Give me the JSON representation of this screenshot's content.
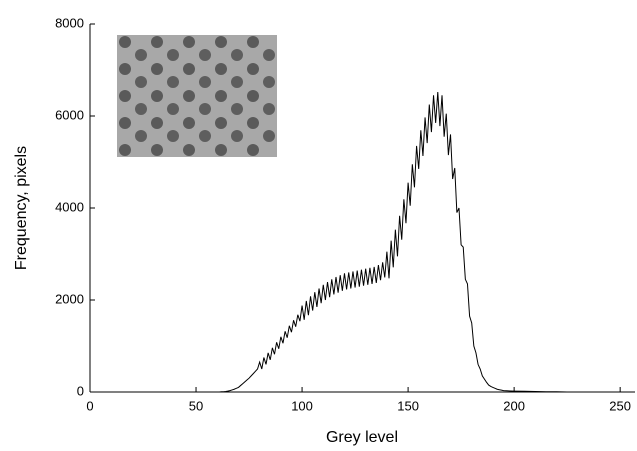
{
  "chart_data": {
    "type": "line",
    "xlabel": "Grey level",
    "ylabel": "Frequency, pixels",
    "color": "#000000",
    "x": [
      60,
      61,
      62,
      63,
      64,
      65,
      66,
      67,
      68,
      69,
      70,
      71,
      72,
      73,
      74,
      75,
      76,
      77,
      78,
      79,
      80,
      81,
      82,
      83,
      84,
      85,
      86,
      87,
      88,
      89,
      90,
      91,
      92,
      93,
      94,
      95,
      96,
      97,
      98,
      99,
      100,
      101,
      102,
      103,
      104,
      105,
      106,
      107,
      108,
      109,
      110,
      111,
      112,
      113,
      114,
      115,
      116,
      117,
      118,
      119,
      120,
      121,
      122,
      123,
      124,
      125,
      126,
      127,
      128,
      129,
      130,
      131,
      132,
      133,
      134,
      135,
      136,
      137,
      138,
      139,
      140,
      141,
      142,
      143,
      144,
      145,
      146,
      147,
      148,
      149,
      150,
      151,
      152,
      153,
      154,
      155,
      156,
      157,
      158,
      159,
      160,
      161,
      162,
      163,
      164,
      165,
      166,
      167,
      168,
      169,
      170,
      171,
      172,
      173,
      174,
      175,
      176,
      177,
      178,
      179,
      180,
      181,
      182,
      183,
      184,
      185,
      186,
      187,
      188,
      189,
      190,
      191,
      192,
      193,
      194,
      195,
      200,
      205,
      210,
      215,
      220,
      225
    ],
    "values": [
      0,
      0,
      5,
      5,
      10,
      20,
      30,
      45,
      60,
      80,
      100,
      140,
      180,
      220,
      260,
      300,
      350,
      400,
      450,
      500,
      650,
      500,
      750,
      600,
      850,
      700,
      960,
      820,
      1080,
      940,
      1200,
      1060,
      1320,
      1180,
      1440,
      1300,
      1560,
      1420,
      1680,
      1540,
      1880,
      1570,
      1980,
      1670,
      2080,
      1770,
      2170,
      1850,
      2250,
      1930,
      2330,
      2000,
      2390,
      2060,
      2450,
      2120,
      2500,
      2160,
      2540,
      2200,
      2580,
      2230,
      2600,
      2250,
      2620,
      2270,
      2640,
      2290,
      2660,
      2310,
      2680,
      2330,
      2700,
      2350,
      2720,
      2370,
      2760,
      2430,
      2820,
      2490,
      3050,
      2470,
      3290,
      2710,
      3530,
      2950,
      3830,
      3310,
      4190,
      3670,
      4550,
      4050,
      4950,
      4450,
      5350,
      4850,
      5690,
      5130,
      5970,
      5410,
      6250,
      5650,
      6450,
      5850,
      6520,
      5780,
      6450,
      5550,
      6050,
      5150,
      5600,
      4630,
      4870,
      3900,
      4000,
      3200,
      3150,
      2450,
      2350,
      1650,
      1500,
      1000,
      850,
      600,
      500,
      350,
      280,
      210,
      150,
      120,
      100,
      80,
      60,
      50,
      40,
      30,
      20,
      15,
      10,
      5,
      5,
      0
    ],
    "xlim": [
      0,
      257
    ],
    "xticks": [
      0,
      50,
      100,
      150,
      200,
      250
    ],
    "ylim": [
      0,
      8000
    ],
    "yticks": [
      0,
      2000,
      4000,
      6000,
      8000
    ]
  }
}
